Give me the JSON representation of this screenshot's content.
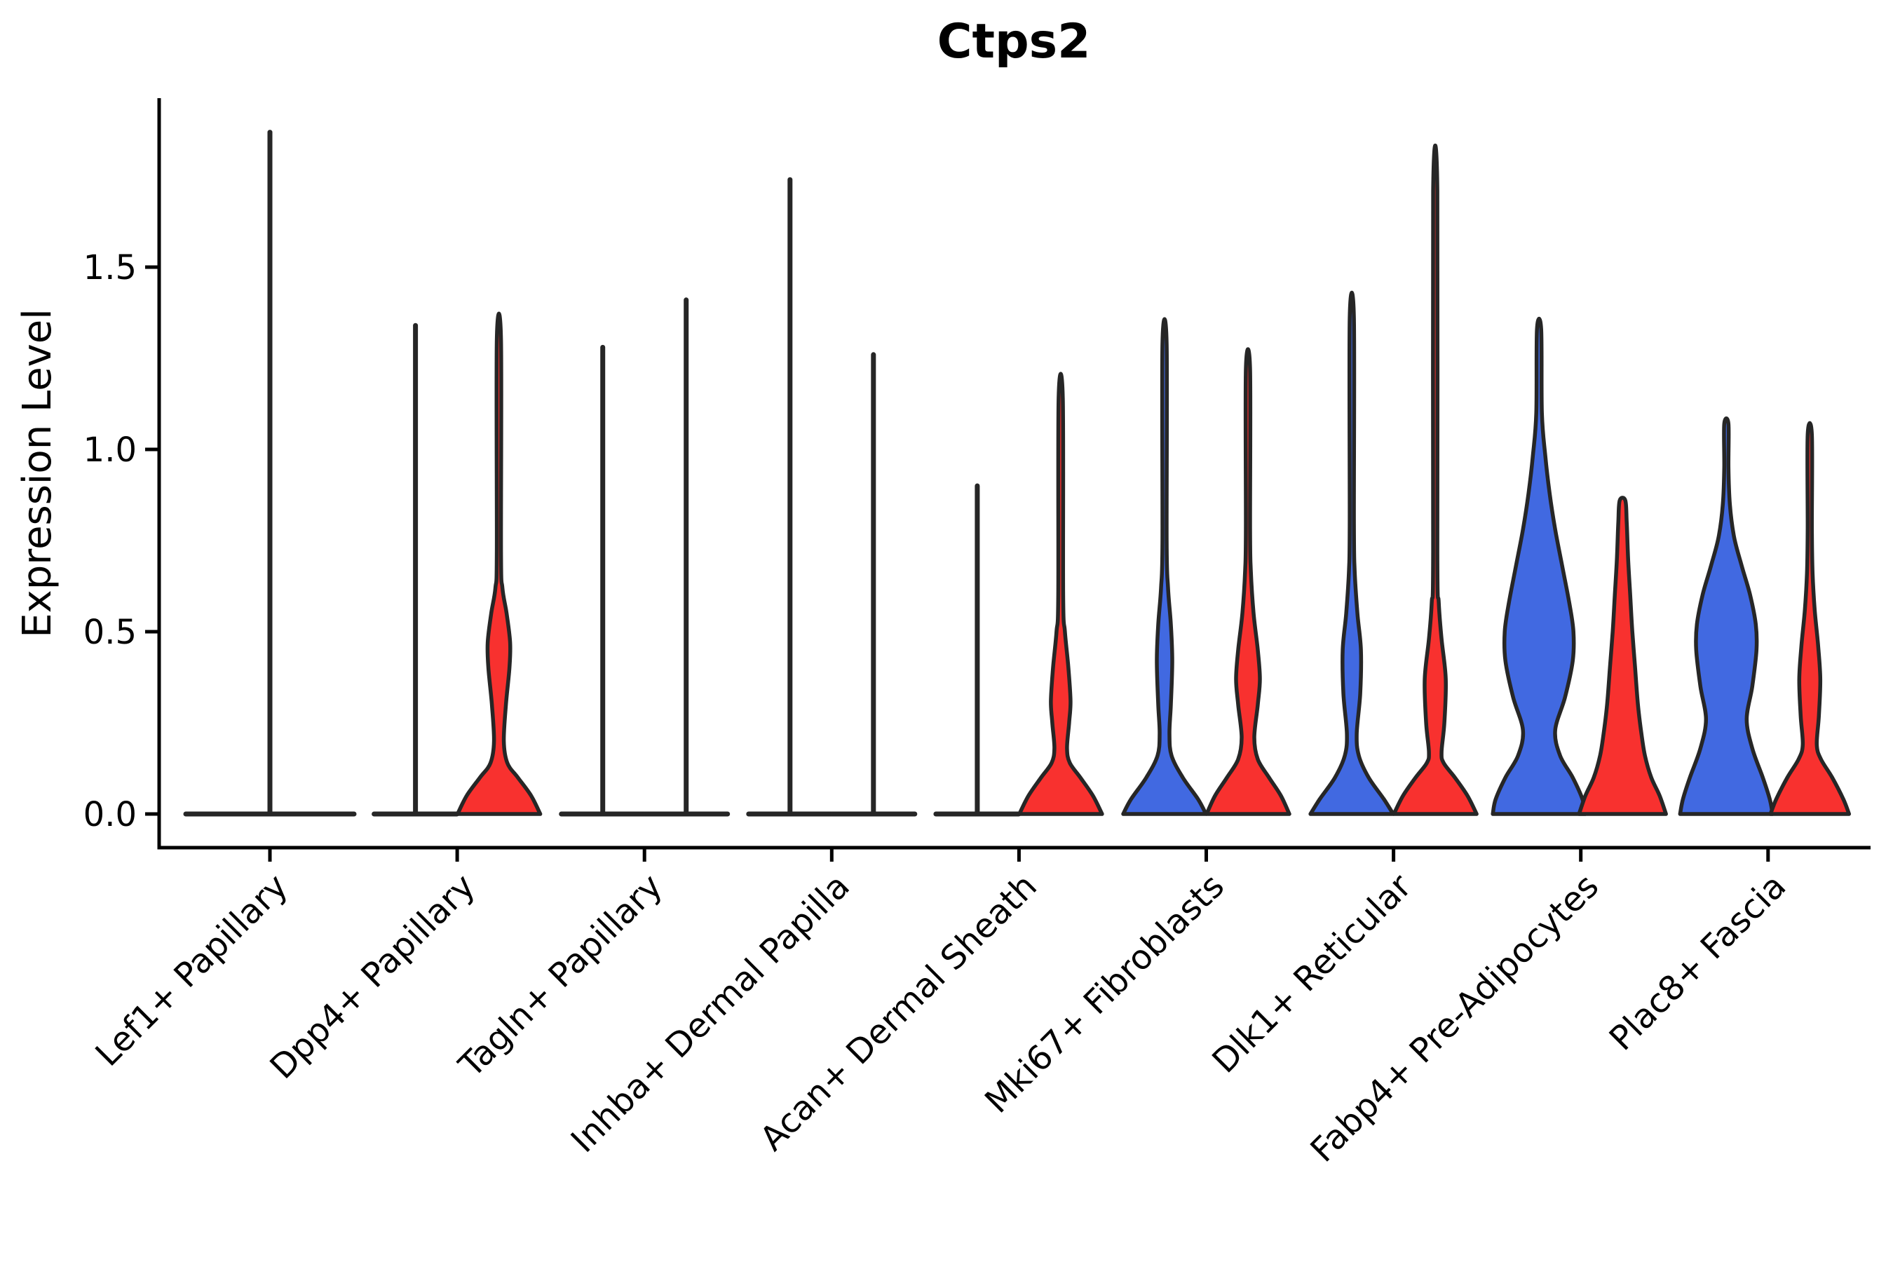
{
  "title": "Ctps2",
  "ylabel": "Expression Level",
  "colors": {
    "blue": "#4169E1",
    "red": "#F8312F",
    "line": "#262626",
    "axis": "#000000"
  },
  "axis": {
    "y_tick_labels": [
      "0.0",
      "0.5",
      "1.0",
      "1.5"
    ],
    "y_tick_values": [
      0.0,
      0.5,
      1.0,
      1.5
    ]
  },
  "chart_data": {
    "type": "violin",
    "title": "Ctps2",
    "xlabel": "",
    "ylabel": "Expression Level",
    "yticks": [
      0.0,
      0.5,
      1.0,
      1.5
    ],
    "ylim": [
      -0.09,
      1.96
    ],
    "grid": false,
    "legend": "none",
    "categories": [
      "Lef1+ Papillary",
      "Dpp4+ Papillary",
      "Tagln+ Papillary",
      "Inhba+ Dermal Papilla",
      "Acan+ Dermal Sheath",
      "Mki67+ Fibroblasts",
      "Dlk1+ Reticular",
      "Fabp4+ Pre-Adipocytes",
      "Plac8+ Fascia"
    ],
    "groups": [
      "blue",
      "red"
    ],
    "violins": [
      {
        "category": "Lef1+ Papillary",
        "group": "single",
        "color": "none",
        "collapsed": true,
        "max": 1.87,
        "half_width": 120
      },
      {
        "category": "Dpp4+ Papillary",
        "group": "blue",
        "color": "blue",
        "collapsed": true,
        "max": 1.34,
        "half_width": 59
      },
      {
        "category": "Dpp4+ Papillary",
        "group": "red",
        "color": "red",
        "collapsed": false,
        "max": 1.3,
        "profile": [
          [
            0,
            59
          ],
          [
            0.05,
            46
          ],
          [
            0.1,
            27
          ],
          [
            0.14,
            12
          ],
          [
            0.2,
            7
          ],
          [
            0.3,
            10
          ],
          [
            0.4,
            15
          ],
          [
            0.47,
            16
          ],
          [
            0.55,
            11
          ],
          [
            0.62,
            5
          ],
          [
            0.72,
            3
          ],
          [
            1.3,
            3
          ]
        ]
      },
      {
        "category": "Tagln+ Papillary",
        "group": "blue",
        "color": "blue",
        "collapsed": true,
        "max": 1.28,
        "half_width": 59
      },
      {
        "category": "Tagln+ Papillary",
        "group": "red",
        "color": "red",
        "collapsed": true,
        "max": 1.41,
        "half_width": 59
      },
      {
        "category": "Inhba+ Dermal Papilla",
        "group": "blue",
        "color": "blue",
        "collapsed": true,
        "max": 1.74,
        "half_width": 59
      },
      {
        "category": "Inhba+ Dermal Papilla",
        "group": "red",
        "color": "red",
        "collapsed": true,
        "max": 1.26,
        "half_width": 59
      },
      {
        "category": "Acan+ Dermal Sheath",
        "group": "blue",
        "color": "blue",
        "collapsed": true,
        "max": 0.9,
        "half_width": 59
      },
      {
        "category": "Acan+ Dermal Sheath",
        "group": "red",
        "color": "red",
        "collapsed": false,
        "max": 1.14,
        "profile": [
          [
            0,
            59
          ],
          [
            0.05,
            46
          ],
          [
            0.1,
            28
          ],
          [
            0.14,
            13
          ],
          [
            0.18,
            9
          ],
          [
            0.25,
            12
          ],
          [
            0.31,
            14
          ],
          [
            0.4,
            11
          ],
          [
            0.5,
            6
          ],
          [
            0.6,
            3.5
          ],
          [
            1.14,
            3
          ]
        ]
      },
      {
        "category": "Mki67+ Fibroblasts",
        "group": "blue",
        "color": "blue",
        "collapsed": false,
        "max": 1.29,
        "profile": [
          [
            0,
            59
          ],
          [
            0.04,
            48
          ],
          [
            0.1,
            26
          ],
          [
            0.16,
            10
          ],
          [
            0.22,
            7
          ],
          [
            0.3,
            9
          ],
          [
            0.42,
            11
          ],
          [
            0.52,
            9
          ],
          [
            0.62,
            5
          ],
          [
            0.75,
            3
          ],
          [
            1.29,
            3
          ]
        ]
      },
      {
        "category": "Mki67+ Fibroblasts",
        "group": "red",
        "color": "red",
        "collapsed": false,
        "max": 1.22,
        "profile": [
          [
            0,
            59
          ],
          [
            0.05,
            47
          ],
          [
            0.1,
            30
          ],
          [
            0.15,
            14
          ],
          [
            0.21,
            9
          ],
          [
            0.3,
            14
          ],
          [
            0.37,
            17
          ],
          [
            0.45,
            14
          ],
          [
            0.55,
            8
          ],
          [
            0.67,
            4
          ],
          [
            0.78,
            3
          ],
          [
            1.22,
            3
          ]
        ]
      },
      {
        "category": "Dlk1+ Reticular",
        "group": "blue",
        "color": "blue",
        "collapsed": false,
        "max": 1.36,
        "profile": [
          [
            0,
            59
          ],
          [
            0.04,
            46
          ],
          [
            0.1,
            24
          ],
          [
            0.16,
            10
          ],
          [
            0.22,
            7
          ],
          [
            0.33,
            12
          ],
          [
            0.45,
            13
          ],
          [
            0.55,
            8
          ],
          [
            0.67,
            4
          ],
          [
            0.8,
            3
          ],
          [
            1.36,
            3
          ]
        ]
      },
      {
        "category": "Dlk1+ Reticular",
        "group": "red",
        "color": "red",
        "collapsed": false,
        "max": 1.71,
        "profile": [
          [
            0,
            59
          ],
          [
            0.05,
            46
          ],
          [
            0.1,
            28
          ],
          [
            0.14,
            12
          ],
          [
            0.17,
            9
          ],
          [
            0.25,
            13
          ],
          [
            0.37,
            15
          ],
          [
            0.48,
            9
          ],
          [
            0.58,
            5
          ],
          [
            0.72,
            3
          ],
          [
            1.71,
            3
          ]
        ]
      },
      {
        "category": "Fabp4+ Pre-Adipocytes",
        "group": "blue",
        "color": "blue",
        "collapsed": false,
        "max": 1.33,
        "profile": [
          [
            0,
            66
          ],
          [
            0.04,
            62
          ],
          [
            0.1,
            48
          ],
          [
            0.16,
            30
          ],
          [
            0.23,
            23
          ],
          [
            0.32,
            37
          ],
          [
            0.42,
            48
          ],
          [
            0.5,
            49
          ],
          [
            0.58,
            43
          ],
          [
            0.68,
            33
          ],
          [
            0.78,
            23
          ],
          [
            0.88,
            15
          ],
          [
            0.98,
            9
          ],
          [
            1.1,
            4
          ],
          [
            1.33,
            3
          ]
        ]
      },
      {
        "category": "Fabp4+ Pre-Adipocytes",
        "group": "red",
        "color": "red",
        "collapsed": false,
        "max": 0.86,
        "blunt": true,
        "profile": [
          [
            0,
            62
          ],
          [
            0.05,
            53
          ],
          [
            0.1,
            41
          ],
          [
            0.16,
            32
          ],
          [
            0.22,
            27
          ],
          [
            0.3,
            22
          ],
          [
            0.4,
            18
          ],
          [
            0.5,
            14
          ],
          [
            0.6,
            11
          ],
          [
            0.7,
            8
          ],
          [
            0.8,
            6
          ],
          [
            0.86,
            4
          ]
        ]
      },
      {
        "category": "Plac8+ Fascia",
        "group": "blue",
        "color": "blue",
        "collapsed": false,
        "max": 1.07,
        "profile": [
          [
            0,
            66
          ],
          [
            0.04,
            62
          ],
          [
            0.1,
            52
          ],
          [
            0.18,
            37
          ],
          [
            0.26,
            29
          ],
          [
            0.35,
            37
          ],
          [
            0.45,
            43
          ],
          [
            0.52,
            42
          ],
          [
            0.6,
            34
          ],
          [
            0.68,
            22
          ],
          [
            0.76,
            11
          ],
          [
            0.85,
            5
          ],
          [
            0.95,
            3
          ],
          [
            1.07,
            3
          ]
        ]
      },
      {
        "category": "Plac8+ Fascia",
        "group": "red",
        "color": "red",
        "collapsed": false,
        "max": 1.04,
        "profile": [
          [
            0,
            56
          ],
          [
            0.04,
            48
          ],
          [
            0.1,
            32
          ],
          [
            0.15,
            16
          ],
          [
            0.19,
            10
          ],
          [
            0.27,
            13
          ],
          [
            0.37,
            15
          ],
          [
            0.46,
            12
          ],
          [
            0.56,
            7
          ],
          [
            0.66,
            4
          ],
          [
            0.78,
            3
          ],
          [
            1.04,
            3
          ]
        ]
      }
    ]
  }
}
